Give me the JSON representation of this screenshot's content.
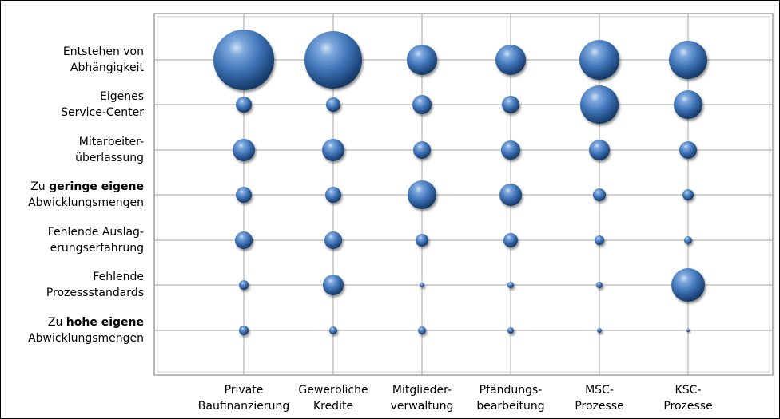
{
  "chart_data": {
    "type": "bubble",
    "categories_x": [
      {
        "line1": "Private",
        "line2": "Baufinanzierung"
      },
      {
        "line1": "Gewerbliche",
        "line2": "Kredite"
      },
      {
        "line1": "Mitglieder-",
        "line2": "verwaltung"
      },
      {
        "line1": "Pfändungs-",
        "line2": "bearbeitung"
      },
      {
        "line1": "MSC-",
        "line2": "Prozesse"
      },
      {
        "line1": "KSC-",
        "line2": "Prozesse"
      }
    ],
    "categories_y": [
      {
        "line1": "Entstehen von",
        "line2": "Abhängigkeit"
      },
      {
        "line1": "Eigenes",
        "line2": "Service-Center"
      },
      {
        "line1": "Mitarbeiter-",
        "line2": "überlassung"
      },
      {
        "line1_pre": "Zu ",
        "line1_bold": "geringe eigene",
        "line2": "Abwicklungsmengen"
      },
      {
        "line1": "Fehlende Auslag-",
        "line2": "erungserfahrung"
      },
      {
        "line1": "Fehlende",
        "line2": "Prozessstandards"
      },
      {
        "line1_pre": "Zu ",
        "line1_bold": "hohe eigene",
        "line2": "Abwicklungsmengen"
      }
    ],
    "values": [
      [
        38,
        36,
        19,
        19,
        25,
        24
      ],
      [
        10,
        9,
        12,
        11,
        24,
        18
      ],
      [
        14,
        14,
        11,
        12,
        13,
        11
      ],
      [
        10,
        10,
        18,
        14,
        8,
        7
      ],
      [
        11,
        11,
        8,
        9,
        6,
        5
      ],
      [
        6,
        13,
        3,
        4,
        4,
        21
      ],
      [
        6,
        5,
        5,
        4,
        3,
        2
      ]
    ],
    "grid": true,
    "legend": "none",
    "bubble_color": "#3f74b8"
  }
}
